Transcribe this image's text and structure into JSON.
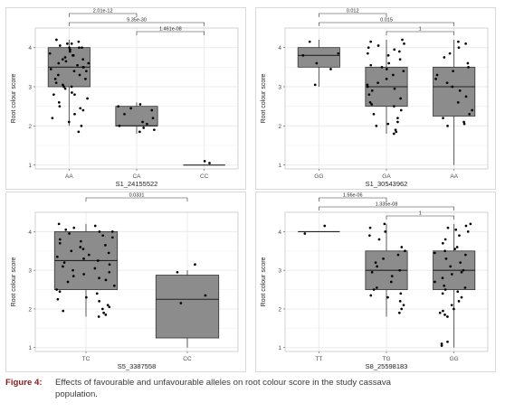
{
  "chart_data": [
    {
      "type": "box",
      "xlabel": "S1_24155522",
      "ylabel": "Root colour score",
      "ylim": [
        0.9,
        4.5
      ],
      "yticks": [
        1,
        2,
        3,
        4
      ],
      "grid": true,
      "categories": [
        "AA",
        "CA",
        "CC"
      ],
      "boxes": [
        {
          "q1": 3.0,
          "median": 3.5,
          "q3": 4.0,
          "low": 2.0,
          "high": 4.2
        },
        {
          "q1": 2.0,
          "median": 2.0,
          "q3": 2.5,
          "low": 1.8,
          "high": 2.6
        },
        {
          "q1": 1.0,
          "median": 1.0,
          "q3": 1.0,
          "low": 1.0,
          "high": 1.0
        }
      ],
      "points": [
        [
          4.2,
          4.15,
          4.1,
          4.1,
          4.05,
          4.0,
          4.0,
          4.0,
          3.95,
          3.9,
          3.85,
          3.8,
          3.8,
          3.75,
          3.7,
          3.7,
          3.65,
          3.6,
          3.6,
          3.55,
          3.5,
          3.5,
          3.45,
          3.4,
          3.4,
          3.3,
          3.3,
          3.2,
          3.2,
          3.1,
          3.05,
          3.0,
          3.0,
          2.95,
          2.85,
          2.8,
          2.8,
          2.7,
          2.6,
          2.5,
          2.45,
          2.4,
          2.3,
          2.2,
          2.1,
          2.0,
          1.85
        ],
        [
          2.55,
          2.5,
          2.45,
          2.4,
          2.3,
          2.2,
          2.1,
          2.05,
          2.0,
          1.95,
          1.9,
          1.85
        ],
        [
          1.05,
          1.1
        ]
      ],
      "brackets": [
        {
          "from": "AA",
          "to": "CA",
          "label": "2.01e-12"
        },
        {
          "from": "AA",
          "to": "CC",
          "label": "9.35e-30"
        },
        {
          "from": "CA",
          "to": "CC",
          "label": "1.461e-08"
        }
      ]
    },
    {
      "type": "box",
      "xlabel": "S1_30543962",
      "ylabel": "Root colour score",
      "ylim": [
        0.9,
        4.5
      ],
      "yticks": [
        1,
        2,
        3,
        4
      ],
      "grid": true,
      "categories": [
        "GG",
        "GA",
        "AA"
      ],
      "boxes": [
        {
          "q1": 3.5,
          "median": 3.8,
          "q3": 4.0,
          "low": 3.0,
          "high": 4.2
        },
        {
          "q1": 2.5,
          "median": 3.0,
          "q3": 3.5,
          "low": 1.8,
          "high": 4.2
        },
        {
          "q1": 2.25,
          "median": 3.0,
          "q3": 3.5,
          "low": 1.0,
          "high": 4.2
        }
      ],
      "points": [
        [
          4.15,
          3.85,
          3.8,
          3.6,
          3.45,
          3.05
        ],
        [
          4.2,
          4.15,
          4.1,
          4.05,
          4.0,
          3.95,
          3.9,
          3.85,
          3.8,
          3.7,
          3.6,
          3.55,
          3.5,
          3.45,
          3.4,
          3.3,
          3.2,
          3.1,
          3.05,
          3.0,
          2.95,
          2.9,
          2.8,
          2.7,
          2.6,
          2.55,
          2.5,
          2.4,
          2.3,
          2.2,
          2.1,
          2.05,
          2.0,
          1.9,
          1.85,
          1.8
        ],
        [
          4.15,
          4.1,
          4.0,
          3.85,
          3.75,
          3.6,
          3.5,
          3.4,
          3.3,
          3.2,
          3.1,
          3.0,
          2.9,
          2.75,
          2.6,
          2.4,
          2.3,
          2.2,
          2.1,
          2.05,
          2.0
        ]
      ],
      "brackets": [
        {
          "from": "GG",
          "to": "GA",
          "label": "0.012"
        },
        {
          "from": "GG",
          "to": "AA",
          "label": "0.015"
        },
        {
          "from": "GA",
          "to": "AA",
          "label": "1"
        }
      ]
    },
    {
      "type": "box",
      "xlabel": "S5_3387558",
      "ylabel": "Root colour score",
      "ylim": [
        0.9,
        4.5
      ],
      "yticks": [
        1,
        2,
        3,
        4
      ],
      "grid": true,
      "categories": [
        "TC",
        "CC"
      ],
      "boxes": [
        {
          "q1": 2.5,
          "median": 3.25,
          "q3": 4.0,
          "low": 1.8,
          "high": 4.2
        },
        {
          "q1": 1.25,
          "median": 2.25,
          "q3": 2.875,
          "low": 1.0,
          "high": 3.0
        }
      ],
      "points": [
        [
          4.2,
          4.15,
          4.1,
          4.05,
          4.0,
          4.0,
          3.95,
          3.9,
          3.85,
          3.8,
          3.75,
          3.7,
          3.65,
          3.6,
          3.55,
          3.5,
          3.45,
          3.4,
          3.35,
          3.3,
          3.25,
          3.2,
          3.15,
          3.1,
          3.05,
          3.0,
          2.95,
          2.9,
          2.85,
          2.8,
          2.75,
          2.7,
          2.6,
          2.5,
          2.45,
          2.4,
          2.3,
          2.25,
          2.2,
          2.1,
          2.05,
          2.0,
          1.95,
          1.9,
          1.85,
          1.8
        ],
        [
          3.15,
          2.95,
          2.35,
          2.15
        ]
      ],
      "brackets": [
        {
          "from": "TC",
          "to": "CC",
          "label": "0.0331"
        }
      ]
    },
    {
      "type": "box",
      "xlabel": "S8_25598183",
      "ylabel": "Root colour score",
      "ylim": [
        0.9,
        4.5
      ],
      "yticks": [
        1,
        2,
        3,
        4
      ],
      "grid": true,
      "categories": [
        "TT",
        "TG",
        "GG"
      ],
      "boxes": [
        {
          "q1": 4.0,
          "median": 4.0,
          "q3": 4.0,
          "low": 4.0,
          "high": 4.0
        },
        {
          "q1": 2.5,
          "median": 3.0,
          "q3": 3.5,
          "low": 1.8,
          "high": 4.2
        },
        {
          "q1": 2.5,
          "median": 3.0,
          "q3": 3.5,
          "low": 1.0,
          "high": 4.2
        }
      ],
      "points": [
        [
          4.15,
          3.95
        ],
        [
          4.2,
          4.1,
          4.0,
          3.9,
          3.8,
          3.6,
          3.5,
          3.4,
          3.3,
          3.2,
          3.1,
          3.0,
          2.95,
          2.85,
          2.7,
          2.55,
          2.5,
          2.4,
          2.35,
          2.3,
          2.2,
          2.1,
          2.0,
          1.9
        ],
        [
          4.2,
          4.15,
          4.1,
          4.05,
          4.0,
          3.9,
          3.8,
          3.7,
          3.6,
          3.55,
          3.5,
          3.45,
          3.4,
          3.3,
          3.2,
          3.1,
          3.0,
          2.95,
          2.9,
          2.8,
          2.7,
          2.6,
          2.55,
          2.5,
          2.45,
          2.4,
          2.3,
          2.2,
          2.1,
          2.0,
          1.95,
          1.9,
          1.85,
          1.8,
          1.15,
          1.1,
          1.05
        ]
      ],
      "brackets": [
        {
          "from": "TT",
          "to": "TG",
          "label": "1.56e-06"
        },
        {
          "from": "TT",
          "to": "GG",
          "label": "1.335e-08"
        },
        {
          "from": "TG",
          "to": "GG",
          "label": "1"
        }
      ]
    }
  ],
  "caption": {
    "label": "Figure 4:",
    "text_line1": "Effects of favourable and unfavourable alleles on root colour score in the study cassava",
    "text_line2": "population."
  },
  "colors": {
    "box_fill": "#8c8c8c",
    "box_stroke": "#333333",
    "point": "#000000",
    "grid": "#ebebeb",
    "caption_label": "#8b1a1a"
  }
}
